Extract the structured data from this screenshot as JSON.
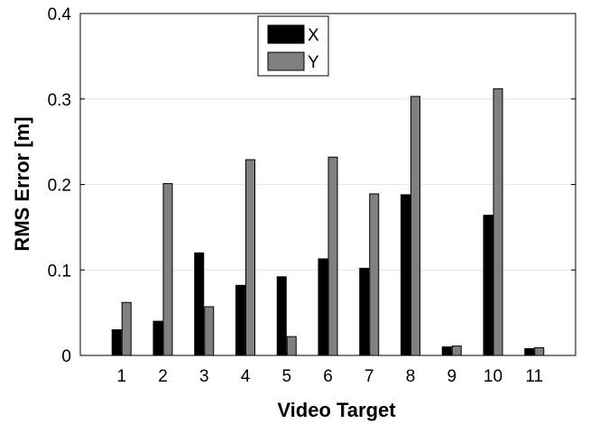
{
  "chart_data": {
    "type": "bar",
    "categories": [
      "1",
      "2",
      "3",
      "4",
      "5",
      "6",
      "7",
      "8",
      "9",
      "10",
      "11"
    ],
    "series": [
      {
        "name": "X",
        "color": "#000000",
        "values": [
          0.03,
          0.04,
          0.12,
          0.082,
          0.092,
          0.113,
          0.102,
          0.188,
          0.01,
          0.164,
          0.008
        ]
      },
      {
        "name": "Y",
        "color": "#808080",
        "values": [
          0.062,
          0.201,
          0.057,
          0.229,
          0.022,
          0.232,
          0.189,
          0.303,
          0.011,
          0.312,
          0.009
        ]
      }
    ],
    "xlabel": "Video Target",
    "ylabel": "RMS Error [m]",
    "ylim": [
      0,
      0.4
    ],
    "yticks": [
      "0",
      "0.1",
      "0.2",
      "0.3",
      "0.4"
    ],
    "grid": "horizontal",
    "legend_position": "top-center"
  }
}
